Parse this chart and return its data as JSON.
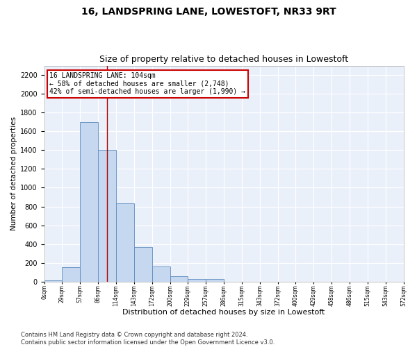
{
  "title": "16, LANDSPRING LANE, LOWESTOFT, NR33 9RT",
  "subtitle": "Size of property relative to detached houses in Lowestoft",
  "xlabel": "Distribution of detached houses by size in Lowestoft",
  "ylabel": "Number of detached properties",
  "bar_values": [
    10,
    150,
    1700,
    1400,
    830,
    370,
    160,
    60,
    25,
    25,
    0,
    0,
    0,
    0,
    0,
    0,
    0,
    0,
    0,
    0
  ],
  "bar_labels": [
    "0sqm",
    "29sqm",
    "57sqm",
    "86sqm",
    "114sqm",
    "143sqm",
    "172sqm",
    "200sqm",
    "229sqm",
    "257sqm",
    "286sqm",
    "315sqm",
    "343sqm",
    "372sqm",
    "400sqm",
    "429sqm",
    "458sqm",
    "486sqm",
    "515sqm",
    "543sqm",
    "572sqm"
  ],
  "bar_color": "#c5d8f0",
  "bar_edge_color": "#5c8bbf",
  "bg_color": "#eaf0fa",
  "grid_color": "#ffffff",
  "annotation_box_text": "16 LANDSPRING LANE: 104sqm\n← 58% of detached houses are smaller (2,748)\n42% of semi-detached houses are larger (1,990) →",
  "annotation_box_color": "#cc0000",
  "red_line_x": 3.5,
  "ylim": [
    0,
    2300
  ],
  "yticks": [
    0,
    200,
    400,
    600,
    800,
    1000,
    1200,
    1400,
    1600,
    1800,
    2000,
    2200
  ],
  "footer_text": "Contains HM Land Registry data © Crown copyright and database right 2024.\nContains public sector information licensed under the Open Government Licence v3.0.",
  "title_fontsize": 10,
  "subtitle_fontsize": 9,
  "xlabel_fontsize": 8,
  "ylabel_fontsize": 7.5,
  "annotation_fontsize": 7,
  "footer_fontsize": 6,
  "tick_fontsize": 7,
  "xtick_fontsize": 5.5
}
